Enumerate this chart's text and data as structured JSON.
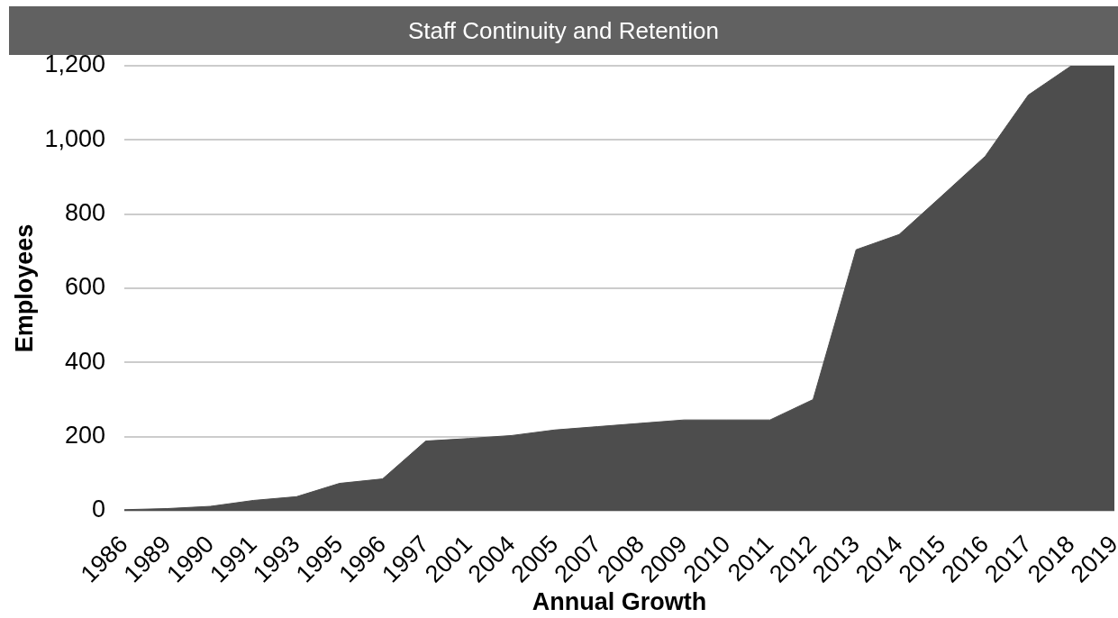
{
  "chart_data": {
    "type": "area",
    "title": "Staff Continuity and Retention",
    "xlabel": "Annual Growth",
    "ylabel": "Employees",
    "categories": [
      "1986",
      "1989",
      "1990",
      "1991",
      "1993",
      "1995",
      "1996",
      "1997",
      "2001",
      "2004",
      "2005",
      "2007",
      "2008",
      "2009",
      "2010",
      "2011",
      "2012",
      "2013",
      "2014",
      "2015",
      "2016",
      "2017",
      "2018",
      "2019"
    ],
    "values": [
      3,
      6,
      12,
      28,
      38,
      74,
      86,
      188,
      195,
      203,
      218,
      227,
      236,
      245,
      245,
      245,
      300,
      704,
      745,
      850,
      956,
      1121,
      1200,
      1200
    ],
    "color": "#4d4d4d",
    "ylim": [
      0,
      1200
    ],
    "yticks": [
      0,
      200,
      400,
      600,
      800,
      {
        "value": 1000,
        "label": "1,000"
      },
      {
        "value": 1200,
        "label": "1,200"
      }
    ],
    "grid": "y"
  }
}
